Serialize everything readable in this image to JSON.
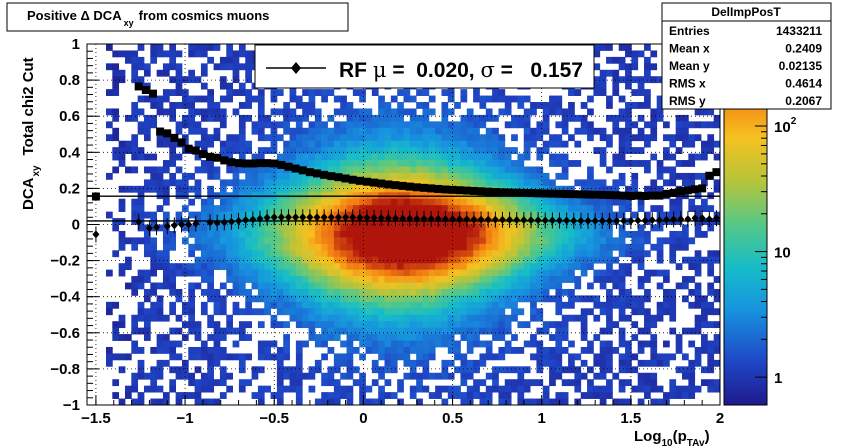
{
  "chart_data": {
    "type": "heatmap",
    "title_parts": {
      "prefix": "Positive Δ DCA",
      "sub": "xy",
      "suffix": "from cosmics muons"
    },
    "xlabel_parts": {
      "prefix": "Log",
      "sub1": "10",
      "mid": "(p",
      "sub2": "TAv",
      "suffix": ")"
    },
    "ylabel_parts": {
      "lead": "Total chi2 Cut",
      "prefix": "DCA",
      "sub": "xy"
    },
    "xlim": [
      -1.55,
      2.0
    ],
    "ylim": [
      -1.0,
      1.0
    ],
    "x_ticks": [
      {
        "v": -1.5,
        "label": "−1.5"
      },
      {
        "v": -1,
        "label": "−1"
      },
      {
        "v": -0.5,
        "label": "−0.5"
      },
      {
        "v": 0,
        "label": "0"
      },
      {
        "v": 0.5,
        "label": "0.5"
      },
      {
        "v": 1,
        "label": "1"
      },
      {
        "v": 1.5,
        "label": "1.5"
      },
      {
        "v": 2,
        "label": "2"
      }
    ],
    "y_ticks": [
      {
        "v": -1,
        "label": "−1"
      },
      {
        "v": -0.8,
        "label": "−0.8"
      },
      {
        "v": -0.6,
        "label": "−0.6"
      },
      {
        "v": -0.4,
        "label": "−0.4"
      },
      {
        "v": -0.2,
        "label": "−0.2"
      },
      {
        "v": 0,
        "label": "0"
      },
      {
        "v": 0.2,
        "label": "0.2"
      },
      {
        "v": 0.4,
        "label": "0.4"
      },
      {
        "v": 0.6,
        "label": "0.6"
      },
      {
        "v": 0.8,
        "label": "0.8"
      },
      {
        "v": 1,
        "label": "1"
      }
    ],
    "grid": true,
    "colorbar": {
      "scale": "log",
      "range": [
        0.6,
        450
      ],
      "ticks": [
        {
          "v": 1,
          "label": "1"
        },
        {
          "v": 10,
          "label": "10"
        },
        {
          "v": 100,
          "label": "10",
          "exp": "2"
        }
      ]
    },
    "legend": {
      "position": "top-center",
      "parts": {
        "a": "RF ",
        "mu": "μ",
        "b": " =  0.020, ",
        "sigma": "σ",
        "c": " =   0.157"
      }
    },
    "ref_lines": [
      {
        "y": 0.157
      },
      {
        "y": 0.02
      }
    ],
    "markers": "diamond",
    "series": [
      {
        "marker": "diamond",
        "points": [
          [
            -1.5,
            -0.055
          ],
          [
            -1.26,
            0.015
          ],
          [
            -1.2,
            -0.02
          ],
          [
            -1.16,
            -0.015
          ],
          [
            -1.1,
            -0.01
          ],
          [
            -1.06,
            -0.005
          ],
          [
            -1.02,
            0.0
          ],
          [
            -0.98,
            0.0
          ],
          [
            -0.94,
            0.005
          ],
          [
            -0.86,
            0.012
          ],
          [
            -0.82,
            0.01
          ],
          [
            -0.78,
            0.012
          ],
          [
            -0.74,
            0.015
          ],
          [
            -0.7,
            0.02
          ],
          [
            -0.66,
            0.025
          ],
          [
            -0.62,
            0.028
          ],
          [
            -0.58,
            0.032
          ],
          [
            -0.54,
            0.038
          ],
          [
            -0.5,
            0.04
          ],
          [
            -0.46,
            0.04
          ],
          [
            -0.42,
            0.04
          ],
          [
            -0.38,
            0.04
          ],
          [
            -0.34,
            0.04
          ],
          [
            -0.3,
            0.04
          ],
          [
            -0.26,
            0.04
          ],
          [
            -0.22,
            0.04
          ],
          [
            -0.18,
            0.04
          ],
          [
            -0.14,
            0.04
          ],
          [
            -0.1,
            0.04
          ],
          [
            -0.06,
            0.04
          ],
          [
            -0.02,
            0.038
          ],
          [
            0.02,
            0.037
          ],
          [
            0.06,
            0.037
          ],
          [
            0.1,
            0.036
          ],
          [
            0.14,
            0.035
          ],
          [
            0.18,
            0.034
          ],
          [
            0.22,
            0.033
          ],
          [
            0.26,
            0.033
          ],
          [
            0.3,
            0.032
          ],
          [
            0.34,
            0.032
          ],
          [
            0.38,
            0.031
          ],
          [
            0.42,
            0.031
          ],
          [
            0.46,
            0.03
          ],
          [
            0.5,
            0.03
          ],
          [
            0.54,
            0.029
          ],
          [
            0.58,
            0.029
          ],
          [
            0.62,
            0.028
          ],
          [
            0.66,
            0.028
          ],
          [
            0.7,
            0.027
          ],
          [
            0.74,
            0.027
          ],
          [
            0.78,
            0.026
          ],
          [
            0.82,
            0.026
          ],
          [
            0.86,
            0.025
          ],
          [
            0.9,
            0.025
          ],
          [
            0.94,
            0.024
          ],
          [
            0.98,
            0.024
          ],
          [
            1.02,
            0.023
          ],
          [
            1.06,
            0.023
          ],
          [
            1.1,
            0.022
          ],
          [
            1.14,
            0.022
          ],
          [
            1.18,
            0.021
          ],
          [
            1.22,
            0.021
          ],
          [
            1.26,
            0.02
          ],
          [
            1.3,
            0.02
          ],
          [
            1.34,
            0.02
          ],
          [
            1.38,
            0.02
          ],
          [
            1.42,
            0.02
          ],
          [
            1.46,
            0.02
          ],
          [
            1.5,
            0.02
          ],
          [
            1.54,
            0.022
          ],
          [
            1.58,
            0.022
          ],
          [
            1.62,
            0.024
          ],
          [
            1.66,
            0.024
          ],
          [
            1.7,
            0.026
          ],
          [
            1.74,
            0.028
          ],
          [
            1.78,
            0.03
          ],
          [
            1.82,
            0.03
          ],
          [
            1.86,
            0.035
          ],
          [
            1.9,
            0.035
          ],
          [
            1.94,
            0.03
          ],
          [
            1.98,
            0.035
          ]
        ]
      },
      {
        "marker": "square",
        "points": [
          [
            -1.5,
            0.155
          ],
          [
            -1.26,
            0.765
          ],
          [
            -1.22,
            0.745
          ],
          [
            -1.18,
            0.725
          ],
          [
            -1.14,
            0.515
          ],
          [
            -1.1,
            0.505
          ],
          [
            -1.06,
            0.48
          ],
          [
            -1.02,
            0.455
          ],
          [
            -0.98,
            0.42
          ],
          [
            -0.94,
            0.41
          ],
          [
            -0.9,
            0.39
          ],
          [
            -0.86,
            0.375
          ],
          [
            -0.82,
            0.37
          ],
          [
            -0.78,
            0.355
          ],
          [
            -0.74,
            0.345
          ],
          [
            -0.7,
            0.34
          ],
          [
            -0.66,
            0.338
          ],
          [
            -0.62,
            0.338
          ],
          [
            -0.58,
            0.34
          ],
          [
            -0.54,
            0.34
          ],
          [
            -0.5,
            0.338
          ],
          [
            -0.46,
            0.33
          ],
          [
            -0.42,
            0.32
          ],
          [
            -0.38,
            0.31
          ],
          [
            -0.34,
            0.3
          ],
          [
            -0.3,
            0.29
          ],
          [
            -0.26,
            0.283
          ],
          [
            -0.22,
            0.275
          ],
          [
            -0.18,
            0.268
          ],
          [
            -0.14,
            0.262
          ],
          [
            -0.1,
            0.255
          ],
          [
            -0.06,
            0.248
          ],
          [
            -0.02,
            0.242
          ],
          [
            0.02,
            0.237
          ],
          [
            0.06,
            0.232
          ],
          [
            0.1,
            0.227
          ],
          [
            0.14,
            0.222
          ],
          [
            0.18,
            0.218
          ],
          [
            0.22,
            0.214
          ],
          [
            0.26,
            0.21
          ],
          [
            0.3,
            0.206
          ],
          [
            0.34,
            0.203
          ],
          [
            0.38,
            0.2
          ],
          [
            0.42,
            0.197
          ],
          [
            0.46,
            0.194
          ],
          [
            0.5,
            0.192
          ],
          [
            0.54,
            0.19
          ],
          [
            0.58,
            0.188
          ],
          [
            0.62,
            0.186
          ],
          [
            0.66,
            0.184
          ],
          [
            0.7,
            0.182
          ],
          [
            0.74,
            0.18
          ],
          [
            0.78,
            0.178
          ],
          [
            0.82,
            0.177
          ],
          [
            0.86,
            0.176
          ],
          [
            0.9,
            0.175
          ],
          [
            0.94,
            0.174
          ],
          [
            0.98,
            0.173
          ],
          [
            1.02,
            0.172
          ],
          [
            1.06,
            0.171
          ],
          [
            1.1,
            0.17
          ],
          [
            1.14,
            0.169
          ],
          [
            1.18,
            0.168
          ],
          [
            1.22,
            0.167
          ],
          [
            1.26,
            0.166
          ],
          [
            1.3,
            0.165
          ],
          [
            1.34,
            0.164
          ],
          [
            1.38,
            0.163
          ],
          [
            1.42,
            0.162
          ],
          [
            1.46,
            0.16
          ],
          [
            1.5,
            0.158
          ],
          [
            1.54,
            0.16
          ],
          [
            1.58,
            0.158
          ],
          [
            1.62,
            0.16
          ],
          [
            1.66,
            0.16
          ],
          [
            1.7,
            0.17
          ],
          [
            1.74,
            0.175
          ],
          [
            1.78,
            0.185
          ],
          [
            1.82,
            0.19
          ],
          [
            1.86,
            0.195
          ],
          [
            1.9,
            0.2
          ],
          [
            1.94,
            0.27
          ],
          [
            1.98,
            0.29
          ]
        ]
      }
    ]
  },
  "stats": {
    "title": "DelImpPosT",
    "rows": [
      {
        "label": "Entries",
        "value": "1433211"
      },
      {
        "label": "Mean x",
        "value": "0.2409"
      },
      {
        "label": "Mean y",
        "value": "0.02135"
      },
      {
        "label": "RMS x",
        "value": "0.4614"
      },
      {
        "label": "RMS y",
        "value": "0.2067"
      }
    ]
  }
}
